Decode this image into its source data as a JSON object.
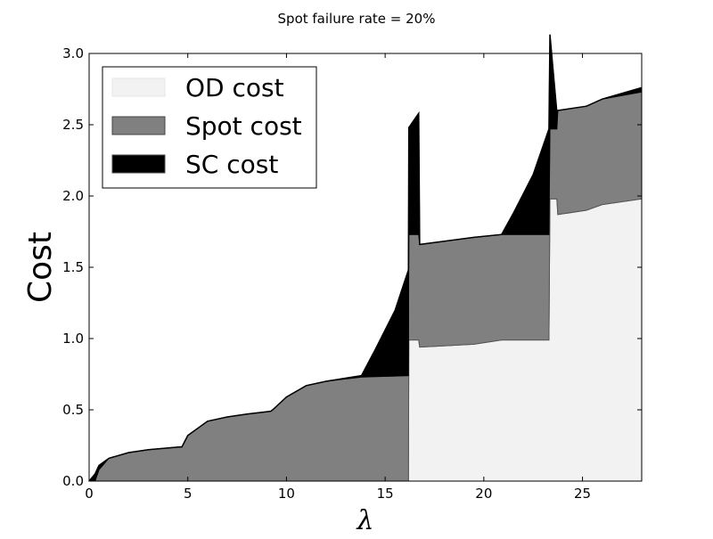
{
  "chart_data": {
    "type": "area",
    "title": "Spot failure rate = 20%",
    "xlabel": "λ",
    "ylabel": "Cost",
    "xlim": [
      0,
      28
    ],
    "ylim": [
      0,
      3.0
    ],
    "x_ticks": [
      "0",
      "5",
      "10",
      "15",
      "20",
      "25"
    ],
    "y_ticks": [
      "0.0",
      "0.5",
      "1.0",
      "1.5",
      "2.0",
      "2.5",
      "3.0"
    ],
    "grid": false,
    "legend_position": "top-left",
    "stacked": true,
    "series": [
      {
        "name": "OD cost",
        "color": "#f2f2f2",
        "x": [
          0,
          16.18,
          16.2,
          16.7,
          16.75,
          19.5,
          20.9,
          23.3,
          23.35,
          23.7,
          23.75,
          25.2,
          26,
          28
        ],
        "values": [
          0,
          0,
          0.99,
          0.99,
          0.94,
          0.96,
          0.99,
          0.99,
          1.98,
          1.98,
          1.87,
          1.9,
          1.94,
          1.98
        ]
      },
      {
        "name": "Spot cost",
        "color": "#808080",
        "x": [
          0,
          0.3,
          0.5,
          1,
          2,
          3,
          4.6,
          4.7,
          5,
          6,
          7,
          8,
          9.2,
          9.3,
          10,
          11,
          12,
          13.8,
          16.2,
          16.7,
          16.75,
          19.5,
          20.9,
          23.3,
          23.35,
          23.7,
          23.75,
          25.2,
          26,
          28
        ],
        "values": [
          0,
          0,
          0.08,
          0.16,
          0.2,
          0.22,
          0.24,
          0.24,
          0.32,
          0.42,
          0.45,
          0.47,
          0.49,
          0.5,
          0.59,
          0.67,
          0.7,
          0.73,
          0.74,
          0.74,
          0.72,
          0.75,
          0.74,
          0.74,
          0.49,
          0.49,
          0.73,
          0.73,
          0.74,
          0.75
        ]
      },
      {
        "name": "SC cost",
        "color": "#000000",
        "x": [
          0,
          0.3,
          0.5,
          1,
          2,
          3,
          4.6,
          4.7,
          5,
          6,
          7,
          8,
          9.2,
          9.3,
          10,
          11,
          12,
          13.8,
          14.5,
          15.5,
          16.2,
          16.7,
          16.75,
          19.5,
          20.9,
          21.5,
          22.5,
          23.3,
          23.7,
          23.75,
          25.2,
          26,
          28
        ],
        "values": [
          0,
          0.05,
          0.03,
          0,
          0,
          0,
          0,
          0,
          0,
          0,
          0,
          0,
          0,
          0,
          0,
          0,
          0,
          0.01,
          0.19,
          0.46,
          0.75,
          0.85,
          0.0,
          0.0,
          0.0,
          0.15,
          0.42,
          0.74,
          0.12,
          0.0,
          0.0,
          0.0,
          0.03
        ]
      }
    ]
  }
}
